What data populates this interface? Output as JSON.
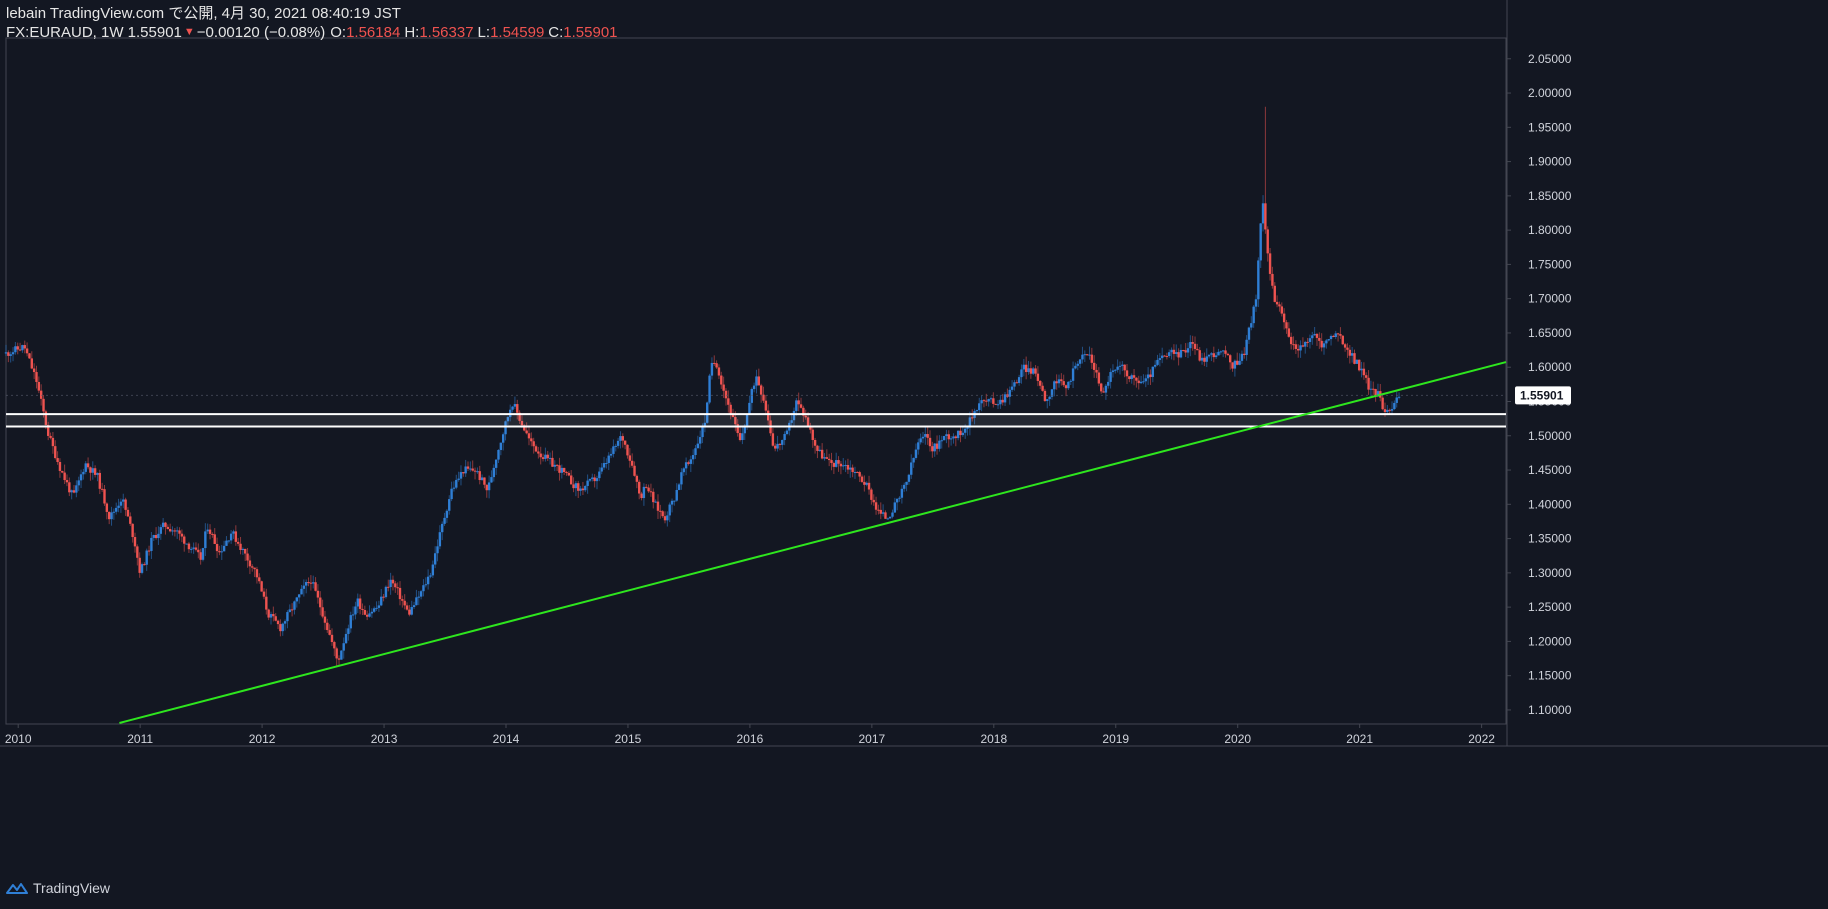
{
  "header": {
    "published": "lebain TradingView.com で公開, 4月 30, 2021 08:40:19 JST",
    "symbol_line": "FX:EURAUD, 1W 1.55901",
    "change_arrow": "▼",
    "change": "−0.00120 (−0.08%)",
    "o_label": "O:",
    "o_value": "1.56184",
    "h_label": "H:",
    "h_value": "1.56337",
    "l_label": "L:",
    "l_value": "1.54599",
    "c_label": "C:",
    "c_value": "1.55901"
  },
  "footer": {
    "brand": "TradingView"
  },
  "colors": {
    "background": "#131722",
    "up": "#2f7fd6",
    "down": "#ef5350",
    "trendline": "#2ee61e",
    "hline": "#ffffff",
    "axis_text": "#d1d4dc",
    "price_tag_bg": "#ffffff"
  },
  "chart_data": {
    "type": "candlestick",
    "symbol": "FX:EURAUD",
    "interval": "1W",
    "xlim": [
      2009.9,
      2022.2
    ],
    "ylim": [
      1.0795,
      2.0803
    ],
    "y_ticks": [
      "2.05000",
      "2.00000",
      "1.95000",
      "1.90000",
      "1.85000",
      "1.80000",
      "1.75000",
      "1.70000",
      "1.65000",
      "1.60000",
      "1.55000",
      "1.50000",
      "1.45000",
      "1.40000",
      "1.35000",
      "1.30000",
      "1.25000",
      "1.20000",
      "1.15000",
      "1.10000"
    ],
    "x_ticks": [
      {
        "label": "2010",
        "x": 2010
      },
      {
        "label": "2011",
        "x": 2011
      },
      {
        "label": "2012",
        "x": 2012
      },
      {
        "label": "2013",
        "x": 2013
      },
      {
        "label": "2014",
        "x": 2014
      },
      {
        "label": "2015",
        "x": 2015
      },
      {
        "label": "2016",
        "x": 2016
      },
      {
        "label": "2017",
        "x": 2017
      },
      {
        "label": "2018",
        "x": 2018
      },
      {
        "label": "2019",
        "x": 2019
      },
      {
        "label": "2020",
        "x": 2020
      },
      {
        "label": "2021",
        "x": 2021
      },
      {
        "label": "2022",
        "x": 2022
      }
    ],
    "last_price": "1.55901",
    "horizontal_levels": [
      1.5315,
      1.5135
    ],
    "trendline": {
      "x1": 2010.83,
      "y1": 1.081,
      "x2": 2022.2,
      "y2": 1.6075
    },
    "close_path": [
      [
        2009.9,
        1.62
      ],
      [
        2010.05,
        1.63
      ],
      [
        2010.15,
        1.58
      ],
      [
        2010.25,
        1.5
      ],
      [
        2010.35,
        1.45
      ],
      [
        2010.45,
        1.41
      ],
      [
        2010.55,
        1.46
      ],
      [
        2010.65,
        1.44
      ],
      [
        2010.75,
        1.38
      ],
      [
        2010.85,
        1.41
      ],
      [
        2010.95,
        1.35
      ],
      [
        2011.0,
        1.3
      ],
      [
        2011.1,
        1.35
      ],
      [
        2011.2,
        1.37
      ],
      [
        2011.3,
        1.36
      ],
      [
        2011.4,
        1.34
      ],
      [
        2011.5,
        1.32
      ],
      [
        2011.55,
        1.37
      ],
      [
        2011.65,
        1.33
      ],
      [
        2011.75,
        1.36
      ],
      [
        2011.85,
        1.33
      ],
      [
        2011.95,
        1.3
      ],
      [
        2012.05,
        1.24
      ],
      [
        2012.15,
        1.22
      ],
      [
        2012.25,
        1.25
      ],
      [
        2012.35,
        1.28
      ],
      [
        2012.4,
        1.29
      ],
      [
        2012.5,
        1.24
      ],
      [
        2012.57,
        1.2
      ],
      [
        2012.62,
        1.17
      ],
      [
        2012.7,
        1.22
      ],
      [
        2012.78,
        1.26
      ],
      [
        2012.85,
        1.24
      ],
      [
        2012.95,
        1.25
      ],
      [
        2013.05,
        1.29
      ],
      [
        2013.12,
        1.27
      ],
      [
        2013.2,
        1.24
      ],
      [
        2013.3,
        1.27
      ],
      [
        2013.38,
        1.3
      ],
      [
        2013.45,
        1.35
      ],
      [
        2013.55,
        1.42
      ],
      [
        2013.65,
        1.45
      ],
      [
        2013.75,
        1.45
      ],
      [
        2013.85,
        1.42
      ],
      [
        2013.92,
        1.47
      ],
      [
        2014.0,
        1.52
      ],
      [
        2014.05,
        1.55
      ],
      [
        2014.1,
        1.53
      ],
      [
        2014.2,
        1.49
      ],
      [
        2014.3,
        1.47
      ],
      [
        2014.45,
        1.45
      ],
      [
        2014.6,
        1.42
      ],
      [
        2014.75,
        1.44
      ],
      [
        2014.85,
        1.47
      ],
      [
        2014.95,
        1.5
      ],
      [
        2015.05,
        1.45
      ],
      [
        2015.1,
        1.41
      ],
      [
        2015.15,
        1.43
      ],
      [
        2015.22,
        1.4
      ],
      [
        2015.3,
        1.38
      ],
      [
        2015.38,
        1.41
      ],
      [
        2015.45,
        1.45
      ],
      [
        2015.5,
        1.46
      ],
      [
        2015.57,
        1.49
      ],
      [
        2015.63,
        1.52
      ],
      [
        2015.68,
        1.6
      ],
      [
        2015.72,
        1.61
      ],
      [
        2015.78,
        1.57
      ],
      [
        2015.85,
        1.53
      ],
      [
        2015.92,
        1.49
      ],
      [
        2016.0,
        1.55
      ],
      [
        2016.05,
        1.59
      ],
      [
        2016.12,
        1.55
      ],
      [
        2016.2,
        1.48
      ],
      [
        2016.3,
        1.5
      ],
      [
        2016.38,
        1.55
      ],
      [
        2016.45,
        1.53
      ],
      [
        2016.55,
        1.48
      ],
      [
        2016.65,
        1.46
      ],
      [
        2016.75,
        1.46
      ],
      [
        2016.85,
        1.45
      ],
      [
        2016.95,
        1.43
      ],
      [
        2017.05,
        1.39
      ],
      [
        2017.12,
        1.38
      ],
      [
        2017.2,
        1.4
      ],
      [
        2017.28,
        1.43
      ],
      [
        2017.38,
        1.49
      ],
      [
        2017.45,
        1.5
      ],
      [
        2017.5,
        1.48
      ],
      [
        2017.6,
        1.5
      ],
      [
        2017.7,
        1.5
      ],
      [
        2017.8,
        1.52
      ],
      [
        2017.88,
        1.55
      ],
      [
        2017.95,
        1.55
      ],
      [
        2018.05,
        1.55
      ],
      [
        2018.15,
        1.57
      ],
      [
        2018.25,
        1.6
      ],
      [
        2018.35,
        1.59
      ],
      [
        2018.43,
        1.55
      ],
      [
        2018.5,
        1.58
      ],
      [
        2018.6,
        1.57
      ],
      [
        2018.68,
        1.61
      ],
      [
        2018.78,
        1.62
      ],
      [
        2018.9,
        1.56
      ],
      [
        2018.95,
        1.59
      ],
      [
        2019.05,
        1.6
      ],
      [
        2019.15,
        1.58
      ],
      [
        2019.25,
        1.58
      ],
      [
        2019.35,
        1.61
      ],
      [
        2019.45,
        1.62
      ],
      [
        2019.55,
        1.62
      ],
      [
        2019.62,
        1.64
      ],
      [
        2019.7,
        1.61
      ],
      [
        2019.8,
        1.62
      ],
      [
        2019.9,
        1.62
      ],
      [
        2019.95,
        1.6
      ],
      [
        2020.0,
        1.61
      ],
      [
        2020.05,
        1.62
      ],
      [
        2020.1,
        1.66
      ],
      [
        2020.15,
        1.7
      ],
      [
        2020.18,
        1.79
      ],
      [
        2020.21,
        1.84
      ],
      [
        2020.25,
        1.76
      ],
      [
        2020.3,
        1.7
      ],
      [
        2020.35,
        1.68
      ],
      [
        2020.45,
        1.63
      ],
      [
        2020.55,
        1.63
      ],
      [
        2020.62,
        1.65
      ],
      [
        2020.7,
        1.63
      ],
      [
        2020.78,
        1.65
      ],
      [
        2020.85,
        1.64
      ],
      [
        2020.92,
        1.62
      ],
      [
        2021.0,
        1.6
      ],
      [
        2021.08,
        1.57
      ],
      [
        2021.15,
        1.56
      ],
      [
        2021.2,
        1.54
      ],
      [
        2021.25,
        1.54
      ],
      [
        2021.3,
        1.55
      ],
      [
        2021.33,
        1.559
      ]
    ]
  }
}
